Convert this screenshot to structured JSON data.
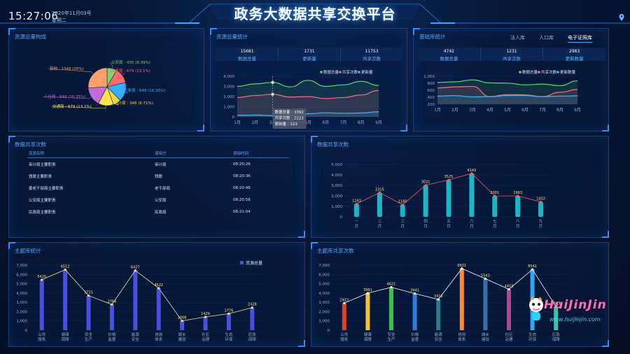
{
  "header": {
    "time": "15:27:06",
    "date": "2020年11月03号",
    "weekday": "星期二",
    "title": "政务大数据共享交换平台",
    "location_icon": "map-pin-icon"
  },
  "panel_resource_composition": {
    "title": "资源总量构成",
    "chart_data": {
      "type": "pie",
      "slices": [
        {
          "label": "公安局",
          "value": 435,
          "pct": "8.39%",
          "text": "公安局 : 435 (8.39%)",
          "color": "#7bd66b"
        },
        {
          "label": "民政局",
          "value": 679,
          "pct": "13.1%",
          "text": "民政局 : 679 (13.1%)",
          "color": "#ff6a6a"
        },
        {
          "label": "气象局",
          "value": 848,
          "pct": "16.35%",
          "text": "气象局 : 848 (16.35%)",
          "color": "#2fb1ff"
        },
        {
          "label": "统计局",
          "value": 348,
          "pct": "6.71%",
          "text": "统计局 : 348 (6.71%)",
          "color": "#f5d742"
        },
        {
          "label": "交通局",
          "value": 679,
          "pct": "13.1%",
          "text": "交通局 : 679 (13.1%)",
          "color": "#ffe34d"
        },
        {
          "label": "人社局",
          "value": 848,
          "pct": "16.35%",
          "text": "人社局 : 848 (16.35%)",
          "color": "#c56bd6"
        },
        {
          "label": "其他",
          "value": 1348,
          "pct": "26%",
          "text": "其他 : 1348 (26%)",
          "color": "#ff9f6a"
        }
      ]
    }
  },
  "panel_resource_stats": {
    "title": "资源总量统计",
    "stats": [
      {
        "value": "15681",
        "label": "数据总量"
      },
      {
        "value": "1731",
        "label": "更新量"
      },
      {
        "value": "11753",
        "label": "共享次数"
      }
    ],
    "tooltip": [
      "数据总量 : 3392",
      "共享次数 : 2223",
      "更新量 : 123"
    ],
    "chart_data": {
      "type": "area",
      "categories": [
        "1月",
        "2月",
        "3月",
        "4月",
        "5月",
        "6月",
        "7月",
        "8月",
        "9月"
      ],
      "yticks": [
        "4,000",
        "3,000",
        "2,000",
        "1,000",
        "0"
      ],
      "ylim": [
        0,
        4000
      ],
      "series": [
        {
          "name": "数据总量",
          "color": "#5bd86b",
          "values": [
            3000,
            3250,
            3392,
            2950,
            3600,
            3000,
            3150,
            3500,
            3100
          ]
        },
        {
          "name": "共享次数",
          "color": "#ff6a8a",
          "values": [
            1900,
            2100,
            2223,
            1950,
            2000,
            1800,
            1900,
            2150,
            2600
          ]
        },
        {
          "name": "更新量",
          "color": "#3fb3ff",
          "values": [
            150,
            180,
            123,
            160,
            300,
            400,
            350,
            380,
            500
          ]
        }
      ]
    }
  },
  "panel_base_stats": {
    "title": "基础库统计",
    "tabs": [
      "法人库",
      "人口库",
      "电子证照库"
    ],
    "active_tab": 2,
    "stats": [
      {
        "value": "4742",
        "label": "数据总量"
      },
      {
        "value": "1231",
        "label": "共享次数"
      },
      {
        "value": "2983",
        "label": "更新数量"
      }
    ],
    "chart_data": {
      "type": "area",
      "categories": [
        "1月",
        "2月",
        "3月",
        "4月",
        "5月",
        "6月",
        "7月",
        "8月",
        "9月"
      ],
      "yticks": [
        "1,000",
        "800",
        "600",
        "400",
        "200"
      ],
      "series": [
        {
          "name": "数据总量",
          "color": "#5bd86b",
          "values": [
            860,
            880,
            960,
            840,
            830,
            760,
            790,
            730,
            920
          ]
        },
        {
          "name": "共享次数",
          "color": "#ff6a8a",
          "values": [
            640,
            680,
            700,
            300,
            380,
            370,
            300,
            470,
            580
          ]
        },
        {
          "name": "更新数量",
          "color": "#3fb3ff",
          "values": [
            320,
            340,
            290,
            300,
            340,
            340,
            300,
            320,
            330
          ]
        }
      ]
    }
  },
  "panel_share_records": {
    "title": "数据共享次数",
    "columns": [
      "资源名称",
      "调用方",
      "调用时间"
    ],
    "rows": [
      [
        "审计局主要职责",
        "审计局",
        "08:20:26"
      ],
      [
        "残联主要职责",
        "残联",
        "08:20:36"
      ],
      [
        "委老干部局主要职责",
        "老干部局",
        "08:20:46"
      ],
      [
        "公安局主要职责",
        "公安局",
        "08:20:56"
      ],
      [
        "民政局主要职责",
        "民政局",
        "08:21:04"
      ]
    ]
  },
  "panel_share_count": {
    "title": "数据共享次数",
    "chart_data": {
      "type": "bar",
      "categories": [
        "一月",
        "二月",
        "三月",
        "四月",
        "五月",
        "六月",
        "七月",
        "八月",
        "九月"
      ],
      "values": [
        1243,
        2315,
        1160,
        3021,
        3525,
        4143,
        2001,
        1993,
        1432
      ],
      "yticks": [
        "5,000",
        "4,000",
        "3,000",
        "2,000",
        "1,000",
        "0"
      ],
      "ylim": [
        0,
        5000
      ]
    }
  },
  "panel_topic_stats": {
    "title": "主题库统计",
    "chart_data": {
      "type": "bar",
      "categories": [
        "公共服务",
        "健康保障",
        "安全生产",
        "价格监督",
        "能源安全",
        "信用体系",
        "城乡建设",
        "社区治理",
        "生态环保",
        "应急保障"
      ],
      "values": [
        5425,
        6512,
        3721,
        2766,
        6427,
        4522,
        1008,
        1429,
        1776,
        2428
      ],
      "yticks": [
        "7,000",
        "6,000",
        "5,000",
        "4,000",
        "3,000",
        "2,000",
        "1,000",
        "0"
      ],
      "ylim": [
        0,
        7000
      ],
      "legend": "资源总量",
      "color": "#4a4fe0"
    }
  },
  "panel_topic_share": {
    "title": "主题库共享次数",
    "chart_data": {
      "type": "bar",
      "categories": [
        "公共服务",
        "健康保障",
        "安全生产",
        "价格监督",
        "能源安全",
        "信用体系",
        "城乡建设",
        "社区治理",
        "生态环保",
        "应急保障"
      ],
      "values": [
        2912,
        3991,
        4621,
        3941,
        3312,
        6631,
        5543,
        4403,
        6541,
        2543
      ],
      "yticks": [
        "7,000",
        "6,000",
        "5,000",
        "4,000",
        "3,000",
        "2,000",
        "1,000",
        "0"
      ],
      "ylim": [
        0,
        7000
      ],
      "colors": [
        "#e0402a",
        "#f5c12f",
        "#3ac24f",
        "#2f7be0",
        "#2a7d8a",
        "#ff8a2a",
        "#3a6fa8",
        "#a84a90",
        "#2fa7f0",
        "#3ac2b0"
      ]
    }
  },
  "watermark": {
    "title": "HuiJinJin",
    "url": "www.huijinjin.com"
  }
}
